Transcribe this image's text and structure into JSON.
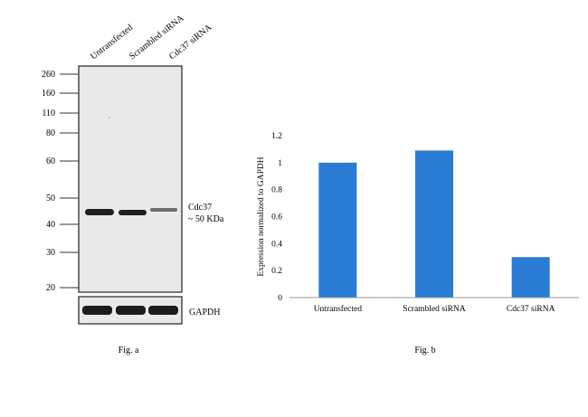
{
  "blot": {
    "lane_labels": [
      "Untransfected",
      "Scrambled siRNA",
      "Cdc37 siRNA"
    ],
    "ladder_kda": [
      "260",
      "160",
      "110",
      "80",
      "60",
      "50",
      "40",
      "30",
      "20"
    ],
    "target_label": "Cdc37",
    "target_size_label": "~ 50 KDa",
    "loading_control_label": "GAPDH",
    "band_intensity": [
      1.0,
      1.0,
      0.45
    ],
    "fig_label": "Fig. a"
  },
  "chart_data": {
    "type": "bar",
    "categories": [
      "Untransfected",
      "Scrambled siRNA",
      "Cdc37 siRNA"
    ],
    "values": [
      1.0,
      1.09,
      0.3
    ],
    "ylabel": "Expression normalized to GAPDH",
    "xlabel": "",
    "ylim": [
      0,
      1.2
    ],
    "yticks": [
      "0",
      "0.2",
      "0.4",
      "0.6",
      "0.8",
      "1",
      "1.2"
    ],
    "bar_color": "#2a7bd4",
    "grid": false,
    "fig_label": "Fig. b"
  }
}
